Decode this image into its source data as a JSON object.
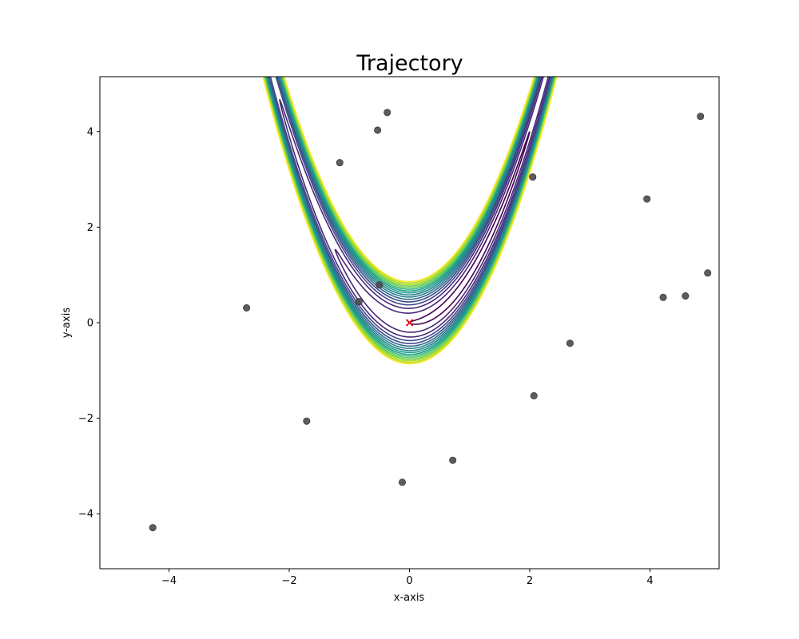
{
  "chart_data": {
    "type": "scatter",
    "title": "Trajectory",
    "xlabel": "x-axis",
    "ylabel": "y-axis",
    "xlim": [
      -5.15,
      5.15
    ],
    "ylim": [
      -5.15,
      5.15
    ],
    "xticks": [
      -4,
      -2,
      0,
      2,
      4
    ],
    "yticks": [
      -4,
      -2,
      0,
      2,
      4
    ],
    "tick_labels": {
      "x": [
        "−4",
        "−2",
        "0",
        "2",
        "4"
      ],
      "y": [
        "−4",
        "−2",
        "0",
        "2",
        "4"
      ]
    },
    "grid": false,
    "legend": "none",
    "contour": {
      "function": "(1 - x)^2 + 100*(y - x^2)^2",
      "levels": [
        1,
        5,
        10,
        15,
        20,
        25,
        30,
        35,
        40,
        45,
        50,
        55,
        60,
        65,
        70,
        75
      ],
      "colormap": [
        "#440154",
        "#482878",
        "#3e4989",
        "#31688e",
        "#26828e",
        "#1f9e89",
        "#35b779",
        "#6ece58",
        "#b5de2b",
        "#fde725"
      ]
    },
    "points": [
      {
        "x": -4.27,
        "y": -4.29
      },
      {
        "x": -2.71,
        "y": 0.31
      },
      {
        "x": -1.71,
        "y": -2.06
      },
      {
        "x": -1.16,
        "y": 3.35
      },
      {
        "x": -0.84,
        "y": 0.44
      },
      {
        "x": -0.5,
        "y": 0.79
      },
      {
        "x": -0.53,
        "y": 4.03
      },
      {
        "x": -0.37,
        "y": 4.4
      },
      {
        "x": -0.12,
        "y": -3.34
      },
      {
        "x": 0.72,
        "y": -2.88
      },
      {
        "x": 2.05,
        "y": 3.05
      },
      {
        "x": 2.07,
        "y": -1.53
      },
      {
        "x": 2.67,
        "y": -0.43
      },
      {
        "x": 3.95,
        "y": 2.59
      },
      {
        "x": 4.22,
        "y": 0.53
      },
      {
        "x": 4.59,
        "y": 0.56
      },
      {
        "x": 4.84,
        "y": 4.32
      },
      {
        "x": 4.96,
        "y": 1.04
      }
    ],
    "point_color": "#4a4a4a",
    "marker": {
      "x": 0,
      "y": 0,
      "symbol": "x",
      "color": "#e8000b"
    }
  }
}
